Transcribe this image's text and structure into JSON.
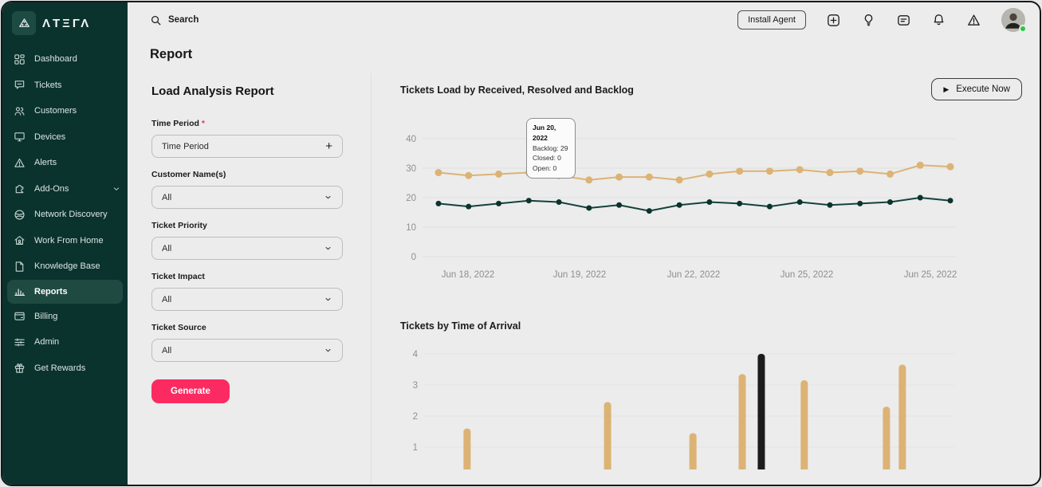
{
  "app": {
    "brand": "ΛTΞΓΛ",
    "colors": {
      "accent_pink": "#fb2b62",
      "sidebar_bg": "#0b332e",
      "sidebar_active_bg": "#1f4a42",
      "gold": "#dcb375",
      "dark_teal_line": "#14423b",
      "black_bar": "#1c1c1c",
      "grid_gray": "#e0e0e0",
      "online_green": "#27c840"
    }
  },
  "sidebar": {
    "items": [
      {
        "label": "Dashboard",
        "icon": "dashboard-icon"
      },
      {
        "label": "Tickets",
        "icon": "tickets-icon"
      },
      {
        "label": "Customers",
        "icon": "customers-icon"
      },
      {
        "label": "Devices",
        "icon": "devices-icon"
      },
      {
        "label": "Alerts",
        "icon": "alerts-icon"
      },
      {
        "label": "Add-Ons",
        "icon": "addons-icon",
        "chevron": true
      },
      {
        "label": "Network Discovery",
        "icon": "network-discovery-icon"
      },
      {
        "label": "Work From Home",
        "icon": "work-from-home-icon"
      },
      {
        "label": "Knowledge Base",
        "icon": "knowledge-base-icon"
      },
      {
        "label": "Reports",
        "icon": "reports-icon",
        "active": true
      },
      {
        "label": "Billing",
        "icon": "billing-icon"
      },
      {
        "label": "Admin",
        "icon": "admin-icon"
      },
      {
        "label": "Get Rewards",
        "icon": "rewards-icon"
      }
    ]
  },
  "topbar": {
    "search_label": "Search",
    "install_button": "Install Agent",
    "icons": [
      "plus-square-icon",
      "lightbulb-icon",
      "feedback-icon",
      "bell-icon",
      "warning-icon"
    ]
  },
  "page": {
    "title": "Report"
  },
  "form": {
    "title": "Load Analysis Report",
    "fields": [
      {
        "label": "Time Period",
        "required": true,
        "value": "Time Period",
        "control": "plus"
      },
      {
        "label": "Customer Name(s)",
        "required": false,
        "value": "All",
        "control": "select"
      },
      {
        "label": "Ticket Priority",
        "required": false,
        "value": "All",
        "control": "select"
      },
      {
        "label": "Ticket Impact",
        "required": false,
        "value": "All",
        "control": "select"
      },
      {
        "label": "Ticket Source",
        "required": false,
        "value": "All",
        "control": "select"
      }
    ],
    "generate_label": "Generate"
  },
  "charts_panel": {
    "execute_button": "Execute Now"
  },
  "chart_data": [
    {
      "type": "line",
      "title": "Tickets Load by Received, Resolved and Backlog",
      "ylim": [
        0,
        40
      ],
      "yticks": [
        0,
        10,
        20,
        30,
        40
      ],
      "grid": true,
      "legend_position": "none",
      "x_tick_labels": [
        "Jun 18, 2022",
        "Jun 19, 2022",
        "Jun 22, 2022",
        "Jun 25, 2022",
        "Jun 25, 2022"
      ],
      "series": [
        {
          "name": "Backlog",
          "color": "#dcb375",
          "values": [
            28.5,
            27.5,
            28,
            28.5,
            27.5,
            26,
            27,
            27,
            26,
            28,
            29,
            29,
            29.5,
            28.5,
            29,
            28,
            31,
            30.5
          ]
        },
        {
          "name": "Received",
          "color": "#14423b",
          "values": [
            18,
            17,
            18,
            19,
            18.5,
            16.5,
            17.5,
            15.5,
            17.5,
            18.5,
            18,
            17,
            18.5,
            17.5,
            18,
            18.5,
            20,
            19
          ]
        }
      ],
      "tooltip": {
        "title": "Jun 20, 2022",
        "lines": [
          "Backlog: 29",
          "Closed: 0",
          "Open: 0"
        ]
      }
    },
    {
      "type": "bar",
      "title": "Tickets by Time of Arrival",
      "ylim": [
        0,
        4
      ],
      "yticks": [
        1,
        2,
        3,
        4
      ],
      "grid": true,
      "bars": [
        {
          "value": 1.6,
          "x_frac": 0.081,
          "color": "#dcb375"
        },
        {
          "value": 2.45,
          "x_frac": 0.346,
          "color": "#dcb375"
        },
        {
          "value": 1.45,
          "x_frac": 0.507,
          "color": "#dcb375"
        },
        {
          "value": 3.35,
          "x_frac": 0.6,
          "color": "#dcb375"
        },
        {
          "value": 4,
          "x_frac": 0.636,
          "color": "#1c1c1c"
        },
        {
          "value": 3.15,
          "x_frac": 0.717,
          "color": "#dcb375"
        },
        {
          "value": 2.3,
          "x_frac": 0.872,
          "color": "#dcb375"
        },
        {
          "value": 3.65,
          "x_frac": 0.902,
          "color": "#dcb375"
        }
      ]
    }
  ]
}
